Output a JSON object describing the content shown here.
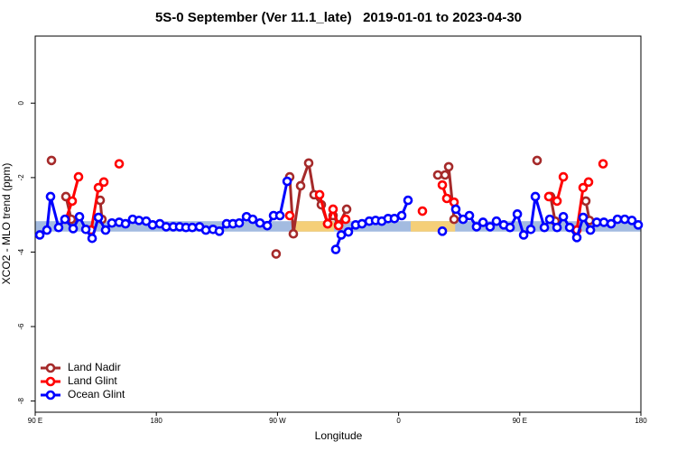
{
  "chart_data": {
    "type": "line",
    "title": "5S-0 September (Ver 11.1_late)   2019-01-01 to 2023-04-30",
    "x_label": "Longitude",
    "y_label": "XCO2 - MLO trend (ppm)",
    "xlim": [
      90,
      540
    ],
    "xticks": [
      {
        "value": 90,
        "label": "90 E"
      },
      {
        "value": 180,
        "label": "180"
      },
      {
        "value": 270,
        "label": "90 W"
      },
      {
        "value": 360,
        "label": "0"
      },
      {
        "value": 450,
        "label": "90 E"
      },
      {
        "value": 540,
        "label": "180"
      }
    ],
    "ylim": [
      -8.3,
      1.8
    ],
    "yticks": [
      0,
      -2,
      -4,
      -6,
      -8
    ],
    "legend": "bottom-left",
    "reference_band": {
      "ylim": [
        -3.45,
        -3.17
      ],
      "color": "#a3bbe0"
    },
    "highlight_spans": {
      "color": "#f5cf78",
      "spans": [
        [
          282,
          312
        ],
        [
          369,
          402
        ]
      ]
    },
    "series": [
      {
        "name": "Land Nadir",
        "color": "#a52a2a",
        "x": [
          102.1,
          null,
          112.8,
          116.8,
          null,
          138.3,
          139.6,
          null,
          269,
          null,
          279.1,
          281.8,
          287.2,
          293.2,
          297.2,
          302.6,
          307.3,
          311.3,
          315.4,
          321.4,
          null,
          389.1,
          394.5,
          397.2,
          401.2,
          null,
          462.9,
          null,
          472.9,
          476.3,
          null,
          499.1,
          501.8
        ],
        "values": [
          -1.54,
          null,
          -2.51,
          -3.12,
          null,
          -2.61,
          -3.12,
          null,
          -4.05,
          null,
          -1.98,
          -3.51,
          -2.22,
          -1.61,
          -2.46,
          -2.73,
          -3.24,
          -3.02,
          -3.27,
          -2.85,
          null,
          -1.93,
          -1.93,
          -1.71,
          -3.12,
          null,
          -1.54,
          null,
          -2.51,
          -3.17,
          null,
          -2.63,
          -3.15
        ]
      },
      {
        "name": "Land Glint",
        "color": "#ff0000",
        "x": [
          112.8,
          117.5,
          122.2,
          null,
          131.6,
          137,
          141,
          null,
          152.4,
          null,
          279.1,
          null,
          301.3,
          307.3,
          311.3,
          315.4,
          320.7,
          null,
          377.7,
          null,
          392.5,
          395.8,
          401.2,
          null,
          471.6,
          477.7,
          482.4,
          null,
          492.4,
          497.1,
          501.1,
          null,
          511.9
        ],
        "values": [
          -3.12,
          -2.63,
          -1.98,
          null,
          -3.41,
          -2.27,
          -2.12,
          null,
          -1.63,
          null,
          -3.02,
          null,
          -2.46,
          -3.24,
          -2.85,
          -3.29,
          -3.12,
          null,
          -2.9,
          null,
          -2.2,
          -2.56,
          -2.66,
          null,
          -2.51,
          -2.63,
          -1.98,
          null,
          -3.41,
          -2.27,
          -2.12,
          null,
          -1.63
        ]
      },
      {
        "name": "Ocean Glint",
        "color": "#0000ff",
        "x": [
          93.4,
          98.7,
          101.4,
          107.4,
          112.1,
          118.2,
          122.9,
          127.6,
          132.3,
          137,
          142.3,
          147,
          152.4,
          157.1,
          162.4,
          167.1,
          172.5,
          177.2,
          182.6,
          187.3,
          192.6,
          197.3,
          202,
          206.7,
          212.1,
          216.8,
          222.1,
          226.8,
          232.2,
          236.9,
          241.6,
          247,
          251.6,
          257,
          262.4,
          267.1,
          271.8,
          277.2,
          null,
          313.3,
          317.4,
          322.7,
          328.1,
          332.8,
          338.2,
          342.9,
          347.5,
          352.2,
          356.9,
          362.3,
          367,
          null,
          392.5,
          null,
          402.5,
          407.9,
          412.6,
          417.9,
          422.7,
          428,
          432.7,
          438.1,
          442.8,
          448.2,
          452.9,
          458.2,
          461.6,
          468.3,
          472.3,
          477.7,
          482.4,
          487.1,
          492.4,
          497.1,
          502.5,
          507.2,
          512.5,
          517.9,
          522.6,
          528,
          533.3,
          538
        ],
        "values": [
          -3.54,
          -3.41,
          -2.51,
          -3.34,
          -3.12,
          -3.37,
          -3.05,
          -3.39,
          -3.63,
          -3.07,
          -3.41,
          -3.22,
          -3.2,
          -3.24,
          -3.12,
          -3.15,
          -3.17,
          -3.27,
          -3.24,
          -3.32,
          -3.32,
          -3.32,
          -3.34,
          -3.34,
          -3.32,
          -3.41,
          -3.39,
          -3.44,
          -3.24,
          -3.24,
          -3.22,
          -3.05,
          -3.12,
          -3.22,
          -3.29,
          -3.02,
          -3.02,
          -2.1,
          null,
          -3.93,
          -3.54,
          -3.46,
          -3.27,
          -3.24,
          -3.17,
          -3.15,
          -3.17,
          -3.1,
          -3.1,
          -3.02,
          -2.61,
          null,
          -3.44,
          null,
          -2.85,
          -3.12,
          -3.02,
          -3.32,
          -3.2,
          -3.32,
          -3.17,
          -3.27,
          -3.34,
          -2.98,
          -3.54,
          -3.39,
          -2.51,
          -3.34,
          -3.12,
          -3.34,
          -3.05,
          -3.34,
          -3.61,
          -3.07,
          -3.41,
          -3.2,
          -3.2,
          -3.24,
          -3.12,
          -3.12,
          -3.15,
          -3.27
        ]
      }
    ]
  }
}
